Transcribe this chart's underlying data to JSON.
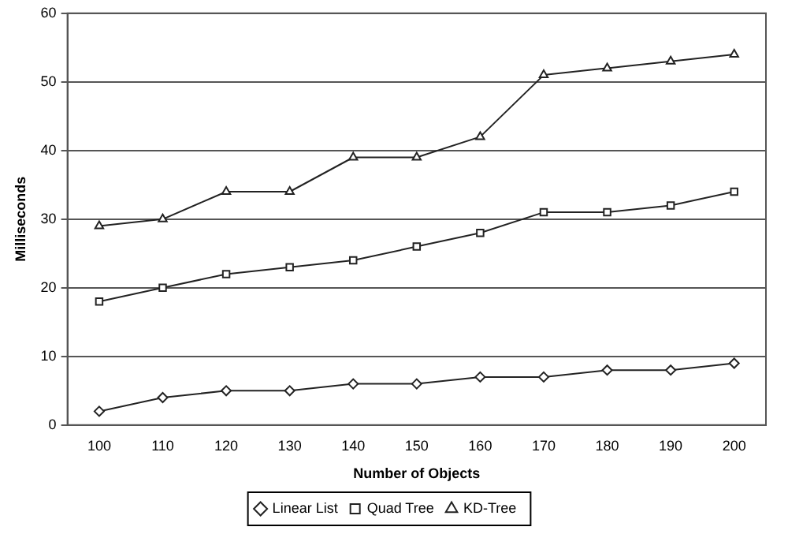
{
  "chart_data": {
    "type": "line",
    "xlabel": "Number of Objects",
    "ylabel": "Milliseconds",
    "categories": [
      "100",
      "110",
      "120",
      "130",
      "140",
      "150",
      "160",
      "170",
      "180",
      "190",
      "200"
    ],
    "series": [
      {
        "name": "Linear List",
        "color": "#222222",
        "marker": "diamond",
        "values": [
          2,
          4,
          5,
          5,
          6,
          6,
          7,
          7,
          8,
          8,
          9
        ]
      },
      {
        "name": "Quad Tree",
        "color": "#222222",
        "marker": "square",
        "values": [
          18,
          20,
          22,
          23,
          24,
          26,
          28,
          31,
          31,
          32,
          34
        ]
      },
      {
        "name": "KD-Tree",
        "color": "#222222",
        "marker": "triangle",
        "values": [
          29,
          30,
          34,
          34,
          39,
          39,
          42,
          51,
          52,
          53,
          54
        ]
      }
    ],
    "ylim": [
      0,
      60
    ],
    "yticks": [
      0,
      10,
      20,
      30,
      40,
      50,
      60
    ],
    "grid": "y",
    "legend": "bottom"
  }
}
